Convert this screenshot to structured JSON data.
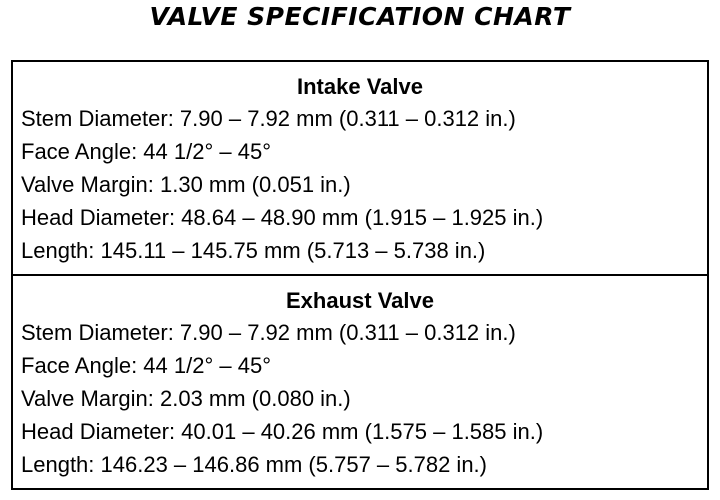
{
  "title": "VALVE SPECIFICATION CHART",
  "sections": [
    {
      "heading": "Intake Valve",
      "lines": [
        "Stem Diameter: 7.90 – 7.92 mm (0.311 – 0.312 in.)",
        "Face Angle: 44 1/2° – 45°",
        "Valve Margin: 1.30 mm (0.051 in.)",
        "Head Diameter: 48.64 – 48.90 mm (1.915 – 1.925 in.)",
        "Length: 145.11 – 145.75 mm (5.713 – 5.738 in.)"
      ]
    },
    {
      "heading": "Exhaust Valve",
      "lines": [
        "Stem Diameter: 7.90 – 7.92 mm (0.311 – 0.312 in.)",
        "Face Angle: 44 1/2° – 45°",
        "Valve Margin: 2.03 mm (0.080 in.)",
        "Head Diameter: 40.01 – 40.26 mm (1.575 – 1.585 in.)",
        "Length: 146.23 – 146.86 mm (5.757 – 5.782 in.)"
      ]
    }
  ]
}
